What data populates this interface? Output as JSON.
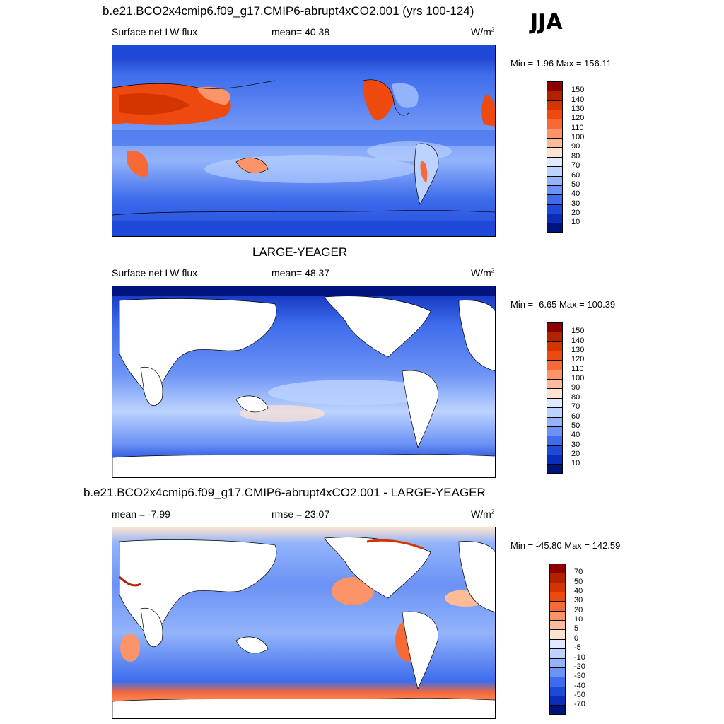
{
  "season": "JJA",
  "panels": [
    {
      "title": "b.e21.BCO2x4cmip6.f09_g17.CMIP6-abrupt4xCO2.001 (yrs 100-124)",
      "left": "Surface net LW flux",
      "center": "mean=  40.38",
      "units": "W/m",
      "units_sup": "2",
      "minmax": "Min =   1.96 Max = 156.11",
      "colorbar": {
        "labels": [
          "150",
          "140",
          "130",
          "120",
          "110",
          "100",
          "90",
          "80",
          "70",
          "60",
          "50",
          "40",
          "30",
          "20",
          "10"
        ],
        "colors": [
          "#8b0000",
          "#b22200",
          "#d43500",
          "#ee4a10",
          "#f76a38",
          "#fb9468",
          "#fdbb98",
          "#fde3d0",
          "#dfeaff",
          "#bdd3ff",
          "#93b4fb",
          "#6b92f5",
          "#3e6cec",
          "#1e48d8",
          "#0a2cb8",
          "#00137d"
        ]
      }
    },
    {
      "title": "LARGE-YEAGER",
      "left": "Surface net LW flux",
      "center": "mean=  48.37",
      "units": "W/m",
      "units_sup": "2",
      "minmax": "Min =  -6.65 Max = 100.39",
      "colorbar": {
        "labels": [
          "150",
          "140",
          "130",
          "120",
          "110",
          "100",
          "90",
          "80",
          "70",
          "60",
          "50",
          "40",
          "30",
          "20",
          "10"
        ],
        "colors": [
          "#8b0000",
          "#b22200",
          "#d43500",
          "#ee4a10",
          "#f76a38",
          "#fb9468",
          "#fdbb98",
          "#fde3d0",
          "#dfeaff",
          "#bdd3ff",
          "#93b4fb",
          "#6b92f5",
          "#3e6cec",
          "#1e48d8",
          "#0a2cb8",
          "#00137d"
        ]
      }
    },
    {
      "title": "b.e21.BCO2x4cmip6.f09_g17.CMIP6-abrupt4xCO2.001 - LARGE-YEAGER",
      "left": "mean =  -7.99",
      "center": "rmse =  23.07",
      "units": "W/m",
      "units_sup": "2",
      "minmax": "Min = -45.80 Max = 142.59",
      "colorbar": {
        "labels": [
          "70",
          "50",
          "40",
          "30",
          "20",
          "10",
          "5",
          "0",
          "-5",
          "-10",
          "-20",
          "-30",
          "-40",
          "-50",
          "-70"
        ],
        "colors": [
          "#8b0000",
          "#b22200",
          "#d43500",
          "#ee4a10",
          "#f76a38",
          "#fb9468",
          "#fdbb98",
          "#fde3d0",
          "#dfeaff",
          "#bdd3ff",
          "#93b4fb",
          "#6b92f5",
          "#3e6cec",
          "#1e48d8",
          "#0a2cb8",
          "#00137d"
        ]
      }
    }
  ]
}
